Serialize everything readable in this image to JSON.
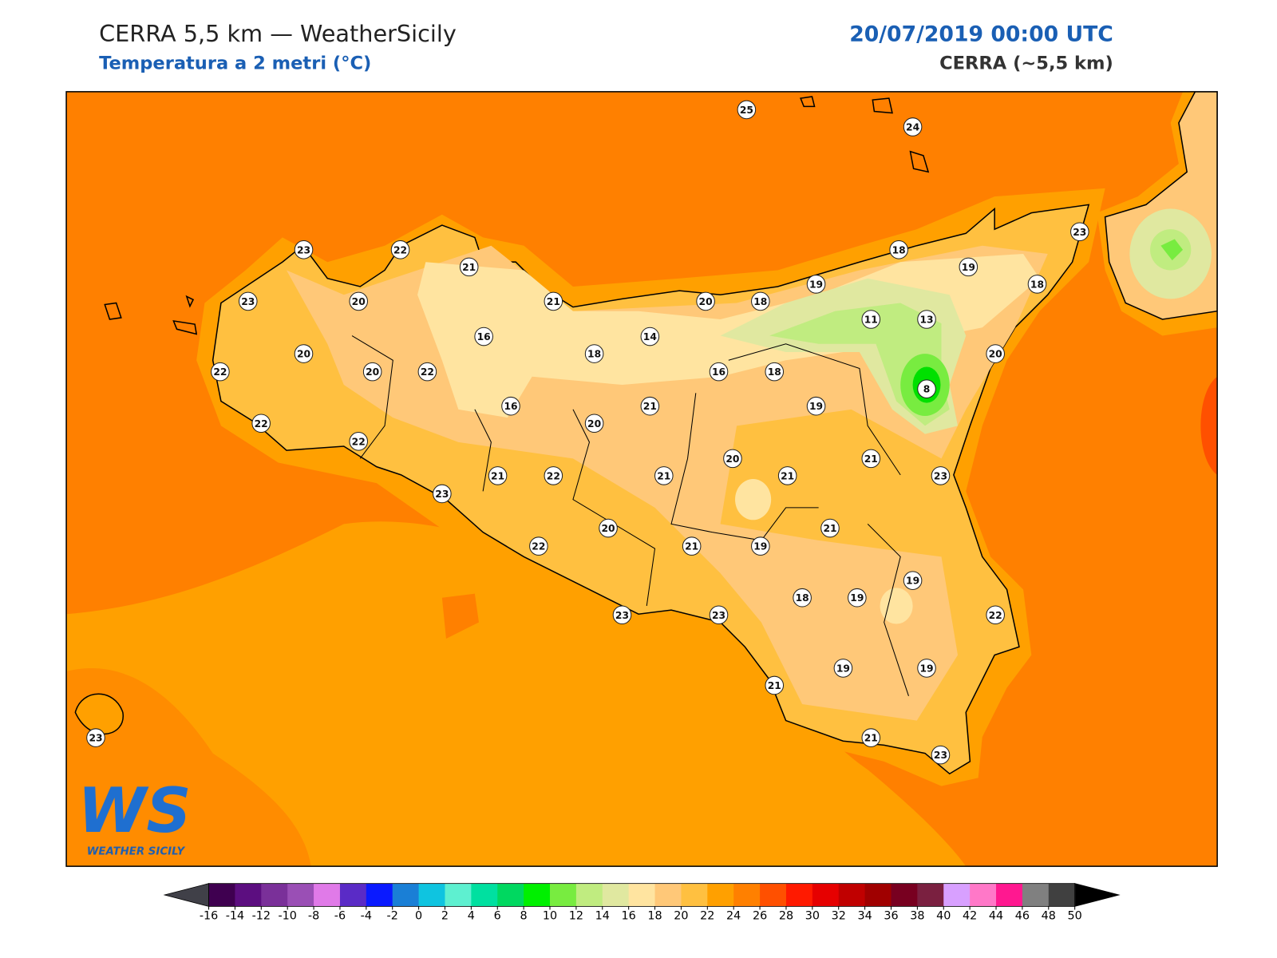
{
  "header": {
    "title": "CERRA 5,5 km — WeatherSicily",
    "subtitle": "Temperatura a 2 metri (°C)",
    "datetime": "20/07/2019 00:00 UTC",
    "model": "CERRA (~5,5 km)"
  },
  "logo": {
    "mark": "WS",
    "name": "WEATHER SICILY"
  },
  "stations": [
    25,
    24,
    23,
    22,
    21,
    23,
    20,
    21,
    20,
    18,
    19,
    18,
    19,
    23,
    18,
    11,
    13,
    16,
    14,
    18,
    20,
    22,
    20,
    22,
    16,
    18,
    20,
    8,
    16,
    21,
    19,
    20,
    22,
    22,
    20,
    21,
    21,
    22,
    21,
    21,
    23,
    23,
    20,
    21,
    22,
    21,
    19,
    19,
    18,
    19,
    22,
    23,
    23,
    21,
    19,
    19,
    21,
    23,
    23
  ],
  "colorbar": {
    "ticks": [
      -16,
      -14,
      -12,
      -10,
      -8,
      -6,
      -4,
      -2,
      0,
      2,
      4,
      6,
      8,
      10,
      12,
      14,
      16,
      18,
      20,
      22,
      24,
      26,
      28,
      30,
      32,
      34,
      36,
      38,
      40,
      42,
      44,
      46,
      48,
      50
    ],
    "colors": [
      "#3f0050",
      "#5c0e80",
      "#7a3099",
      "#9a4fb5",
      "#e07ae8",
      "#5a2bc6",
      "#0a1aff",
      "#1a7fd6",
      "#0fc4e0",
      "#5ef0d0",
      "#00e0a0",
      "#00d860",
      "#00f000",
      "#78ec40",
      "#c0ec80",
      "#e0e8a0",
      "#ffe4a0",
      "#ffc878",
      "#ffc040",
      "#ffa000",
      "#ff8000",
      "#ff5000",
      "#ff1a00",
      "#e60000",
      "#c00000",
      "#a00000",
      "#780020",
      "#7a2040",
      "#d8a0ff",
      "#ff78c8",
      "#ff1890",
      "#808080",
      "#404040"
    ],
    "under": "#404048",
    "over": "#000000"
  }
}
